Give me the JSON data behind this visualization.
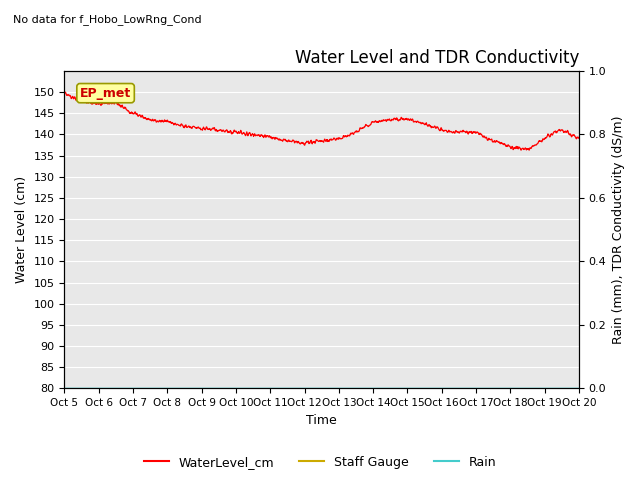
{
  "title": "Water Level and TDR Conductivity",
  "subtitle": "No data for f_Hobo_LowRng_Cond",
  "xlabel": "Time",
  "ylabel_left": "Water Level (cm)",
  "ylabel_right": "Rain (mm), TDR Conductivity (dS/m)",
  "ylim_left": [
    80,
    155
  ],
  "ylim_right": [
    0.0,
    1.0
  ],
  "yticks_left": [
    80,
    85,
    90,
    95,
    100,
    105,
    110,
    115,
    120,
    125,
    130,
    135,
    140,
    145,
    150
  ],
  "yticks_right": [
    0.0,
    0.2,
    0.4,
    0.6,
    0.8,
    1.0
  ],
  "xtick_labels": [
    "Oct 5",
    "Oct 6",
    "Oct 7",
    "Oct 8",
    "Oct 9",
    "Oct 10",
    "Oct 11",
    "Oct 12",
    "Oct 13",
    "Oct 14",
    "Oct 15",
    "Oct 16",
    "Oct 17",
    "Oct 18",
    "Oct 19",
    "Oct 20"
  ],
  "annotation_text": "EP_met",
  "water_level_color": "#ff0000",
  "staff_gauge_color": "#ccaa00",
  "rain_color": "#44cccc",
  "legend_entries": [
    "WaterLevel_cm",
    "Staff Gauge",
    "Rain"
  ],
  "axes_facecolor": "#e8e8e8",
  "fig_facecolor": "#ffffff",
  "grid_color": "#ffffff",
  "title_fontsize": 12,
  "subtitle_fontsize": 8,
  "axis_fontsize": 9,
  "tick_fontsize": 8
}
